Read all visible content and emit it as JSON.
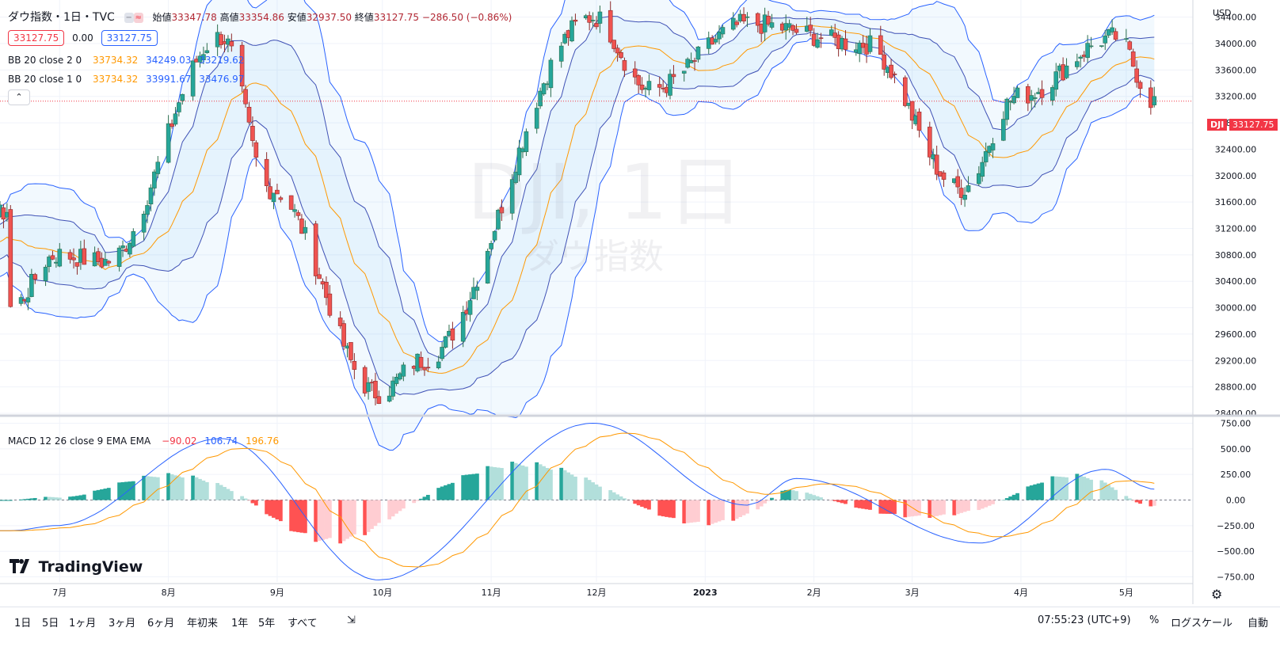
{
  "header": {
    "symbol_title": "ダウ指数・1日・TVC",
    "ohlc": {
      "open_label": "始値",
      "open": "33347.78",
      "high_label": "高値",
      "high": "33354.86",
      "low_label": "安値",
      "low": "32937.50",
      "close_label": "終値",
      "close": "33127.75",
      "change": "−286.50 (−0.86%)"
    },
    "bid": "33127.75",
    "spread": "0.00",
    "ask": "33127.75"
  },
  "indicators": {
    "bb2": {
      "label": "BB 20 close 2 0",
      "basis": "33734.32",
      "upper": "34249.03",
      "lower": "33219.62"
    },
    "bb1": {
      "label": "BB 20 close 1 0",
      "basis": "33734.32",
      "upper": "33991.67",
      "lower": "33476.97"
    },
    "macd": {
      "label": "MACD 12 26 close 9 EMA EMA",
      "hist": "−90.02",
      "macd": "106.74",
      "signal": "196.76"
    }
  },
  "watermark": {
    "line1": "DJI, 1日",
    "line2": "ダウ指数"
  },
  "price_scale": {
    "currency": "USD",
    "ticks": [
      "34400.00",
      "34000.00",
      "33600.00",
      "33200.00",
      "32800.00",
      "32400.00",
      "32000.00",
      "31600.00",
      "31200.00",
      "30800.00",
      "30400.00",
      "30000.00",
      "29600.00",
      "29200.00",
      "28800.00",
      "28400.00"
    ],
    "last_price": "33127.75",
    "symbol_tag": "DJI"
  },
  "macd_scale": {
    "ticks": [
      "750.00",
      "500.00",
      "250.00",
      "0.00",
      "−250.00",
      "−500.00",
      "−750.00"
    ]
  },
  "time_axis": {
    "labels": [
      "7月",
      "8月",
      "9月",
      "10月",
      "11月",
      "12月",
      "2023",
      "2月",
      "3月",
      "4月",
      "5月"
    ]
  },
  "bottom_bar": {
    "ranges": [
      "1日",
      "5日",
      "1ヶ月",
      "3ヶ月",
      "6ヶ月",
      "年初来",
      "1年",
      "5年",
      "すべて"
    ],
    "time": "07:55:23 (UTC+9)",
    "percent": "%",
    "log_scale": "ログスケール",
    "auto": "自動"
  },
  "branding": {
    "logo": "TradingView"
  },
  "colors": {
    "up": "#26a69a",
    "down": "#ef5350",
    "bb_band": "#2962ff",
    "bb_basis": "#ff9800",
    "macd_line": "#2962ff",
    "signal_line": "#ff9800",
    "last_price": "#f23645"
  },
  "chart_data": {
    "type": "candlestick",
    "series_ranges": {
      "price_ylim": [
        28400,
        34600
      ],
      "macd_ylim": [
        -800,
        800
      ]
    },
    "anchors": [
      {
        "date": "2022-06-17",
        "price": 30000
      },
      {
        "date": "2022-06-30",
        "price": 30800
      },
      {
        "date": "2022-07-14",
        "price": 30700
      },
      {
        "date": "2022-08-16",
        "price": 34100
      },
      {
        "date": "2022-08-30",
        "price": 31800
      },
      {
        "date": "2022-09-30",
        "price": 28700
      },
      {
        "date": "2022-10-12",
        "price": 29200
      },
      {
        "date": "2022-11-30",
        "price": 34400
      },
      {
        "date": "2022-12-16",
        "price": 33300
      },
      {
        "date": "2023-01-13",
        "price": 34300
      },
      {
        "date": "2023-02-15",
        "price": 34000
      },
      {
        "date": "2023-03-15",
        "price": 31800
      },
      {
        "date": "2023-03-31",
        "price": 33200
      },
      {
        "date": "2023-04-28",
        "price": 34100
      },
      {
        "date": "2023-05-09",
        "price": 33127.75
      }
    ],
    "macd": {
      "macd_anchors": [
        {
          "date": "2022-06-17",
          "v": -300
        },
        {
          "date": "2022-06-30",
          "v": -250
        },
        {
          "date": "2022-08-16",
          "v": 600
        },
        {
          "date": "2022-09-30",
          "v": -780
        },
        {
          "date": "2022-11-30",
          "v": 750
        },
        {
          "date": "2023-01-13",
          "v": -50
        },
        {
          "date": "2023-01-27",
          "v": 210
        },
        {
          "date": "2023-03-20",
          "v": -420
        },
        {
          "date": "2023-04-25",
          "v": 300
        },
        {
          "date": "2023-05-09",
          "v": 106.74
        }
      ],
      "last": {
        "hist": -90.02,
        "macd": 106.74,
        "signal": 196.76
      }
    },
    "xlabel": "",
    "ylabel": ""
  }
}
